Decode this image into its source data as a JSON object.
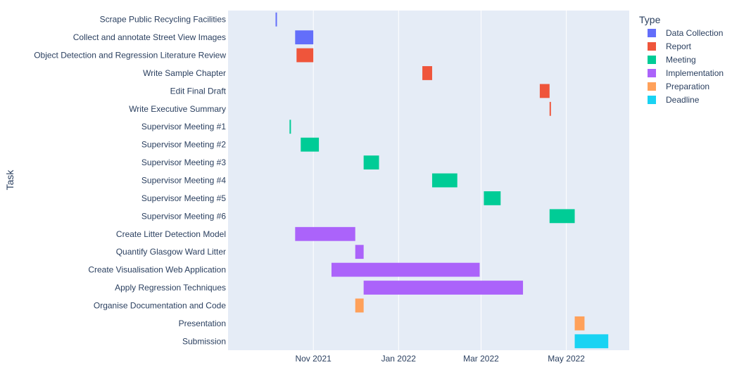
{
  "chart_data": {
    "type": "gantt",
    "title": "",
    "ylabel": "Task",
    "xlabel": "",
    "x_range": [
      "2021-09-01",
      "2022-06-15"
    ],
    "x_ticks": [
      {
        "date": "2021-11-01",
        "label": "Nov 2021"
      },
      {
        "date": "2022-01-01",
        "label": "Jan 2022"
      },
      {
        "date": "2022-03-01",
        "label": "Mar 2022"
      },
      {
        "date": "2022-05-01",
        "label": "May 2022"
      }
    ],
    "grid": true,
    "legend": {
      "title": "Type",
      "placement": "top-right",
      "items": [
        {
          "name": "Data Collection",
          "color": "#636efa"
        },
        {
          "name": "Report",
          "color": "#ef553b"
        },
        {
          "name": "Meeting",
          "color": "#00cc96"
        },
        {
          "name": "Implementation",
          "color": "#ab63fa"
        },
        {
          "name": "Preparation",
          "color": "#ffa15a"
        },
        {
          "name": "Deadline",
          "color": "#19d3f3"
        }
      ]
    },
    "tasks": [
      {
        "task": "Scrape Public Recycling Facilities",
        "start": "2021-10-05",
        "end": "2021-10-06",
        "type": "Data Collection"
      },
      {
        "task": "Collect and annotate Street View Images",
        "start": "2021-10-19",
        "end": "2021-11-01",
        "type": "Data Collection"
      },
      {
        "task": "Object Detection and Regression Literature Review",
        "start": "2021-10-20",
        "end": "2021-11-01",
        "type": "Report"
      },
      {
        "task": "Write Sample Chapter",
        "start": "2022-01-18",
        "end": "2022-01-25",
        "type": "Report"
      },
      {
        "task": "Edit Final Draft",
        "start": "2022-04-12",
        "end": "2022-04-19",
        "type": "Report"
      },
      {
        "task": "Write Executive Summary",
        "start": "2022-04-19",
        "end": "2022-04-20",
        "type": "Report"
      },
      {
        "task": "Supervisor Meeting #1",
        "start": "2021-10-15",
        "end": "2021-10-16",
        "type": "Meeting"
      },
      {
        "task": "Supervisor Meeting #2",
        "start": "2021-10-23",
        "end": "2021-11-05",
        "type": "Meeting"
      },
      {
        "task": "Supervisor Meeting #3",
        "start": "2021-12-07",
        "end": "2021-12-18",
        "type": "Meeting"
      },
      {
        "task": "Supervisor Meeting #4",
        "start": "2022-01-25",
        "end": "2022-02-12",
        "type": "Meeting"
      },
      {
        "task": "Supervisor Meeting #5",
        "start": "2022-03-03",
        "end": "2022-03-15",
        "type": "Meeting"
      },
      {
        "task": "Supervisor Meeting #6",
        "start": "2022-04-19",
        "end": "2022-05-07",
        "type": "Meeting"
      },
      {
        "task": "Create Litter Detection Model",
        "start": "2021-10-19",
        "end": "2021-12-01",
        "type": "Implementation"
      },
      {
        "task": "Quantify Glasgow Ward Litter",
        "start": "2021-12-01",
        "end": "2021-12-07",
        "type": "Implementation"
      },
      {
        "task": "Create Visualisation Web Application",
        "start": "2021-11-14",
        "end": "2022-02-28",
        "type": "Implementation"
      },
      {
        "task": "Apply Regression Techniques",
        "start": "2021-12-07",
        "end": "2022-03-31",
        "type": "Implementation"
      },
      {
        "task": "Organise Documentation and Code",
        "start": "2021-12-01",
        "end": "2021-12-07",
        "type": "Preparation"
      },
      {
        "task": "Presentation",
        "start": "2022-05-07",
        "end": "2022-05-14",
        "type": "Preparation"
      },
      {
        "task": "Submission",
        "start": "2022-05-07",
        "end": "2022-05-31",
        "type": "Deadline"
      }
    ]
  }
}
